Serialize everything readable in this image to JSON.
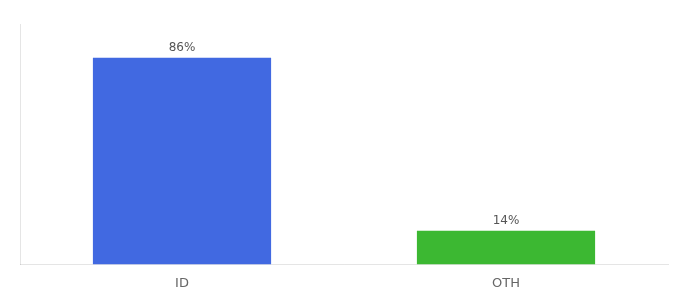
{
  "chart_data": {
    "type": "bar",
    "categories": [
      "ID",
      "OTH"
    ],
    "values": [
      86,
      14
    ],
    "value_labels": [
      "86%",
      "14%"
    ],
    "colors": [
      "#4169e1",
      "#3cb832"
    ],
    "ylim": [
      0,
      100
    ],
    "grid": false,
    "data_labels": true,
    "tick_labels": "x"
  }
}
